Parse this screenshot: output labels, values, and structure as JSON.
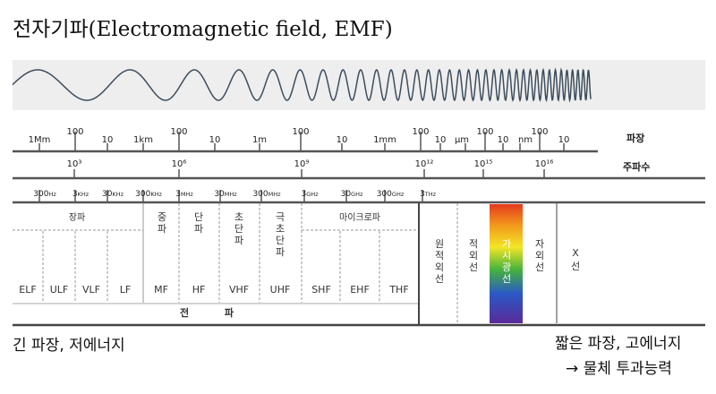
{
  "title": "전자기파(Electromagnetic field, EMF)",
  "left_note": "긴 파장, 저에너지",
  "right_note": {
    "line1": "짧은 파장, 고에너지",
    "line2": "→ 물체 투과능력"
  },
  "row_labels": {
    "wavelength": "파장",
    "frequency": "주파수"
  },
  "wavelength_ticks": [
    "1Mm",
    "100",
    "10",
    "1km",
    "100",
    "10",
    "1m",
    "100",
    "10",
    "1mm",
    "100",
    "10",
    "μm",
    "100",
    "10",
    "nm",
    "100",
    "10"
  ],
  "frequency_exponent_ticks": [
    "10³",
    "10⁶",
    "10⁹",
    "10¹²",
    "10¹⁵",
    "10¹⁶"
  ],
  "frequency_ticks": [
    {
      "num": "300",
      "unit": "Hz"
    },
    {
      "num": "3",
      "unit": "KHz"
    },
    {
      "num": "30",
      "unit": "KHz"
    },
    {
      "num": "300",
      "unit": "KHz"
    },
    {
      "num": "3",
      "unit": "MHz"
    },
    {
      "num": "30",
      "unit": "MHz"
    },
    {
      "num": "300",
      "unit": "MHz"
    },
    {
      "num": "3",
      "unit": "GHz"
    },
    {
      "num": "30",
      "unit": "GHz"
    },
    {
      "num": "300",
      "unit": "GHz"
    },
    {
      "num": "3",
      "unit": "THz"
    }
  ],
  "group_labels": {
    "long_wave": "장파",
    "medium_wave": "중파",
    "short_wave": "단파",
    "ultra_short_wave": "초단파",
    "micro_ultra_short": "극초단파",
    "microwave": "마이크로파"
  },
  "bands": [
    "ELF",
    "ULF",
    "VLF",
    "LF",
    "MF",
    "HF",
    "VHF",
    "UHF",
    "SHF",
    "EHF",
    "THF"
  ],
  "radio_label": "전 파",
  "optical": {
    "far_infrared": "원적외선",
    "infrared": "적외선",
    "visible": "가시광선",
    "ultraviolet": "자외선",
    "xray": "X선"
  }
}
